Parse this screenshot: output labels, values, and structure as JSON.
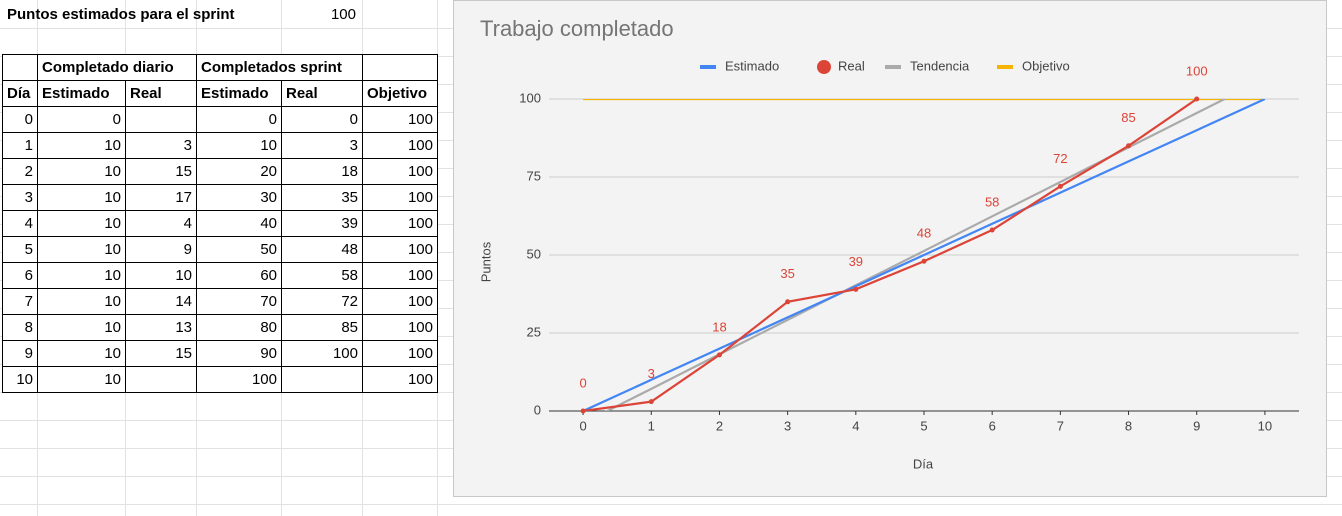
{
  "sheet": {
    "title_label": "Puntos estimados para el sprint",
    "title_value": 100,
    "groups": [
      "Completado diario",
      "Completados sprint"
    ],
    "headers": [
      "Día",
      "Estimado",
      "Real",
      "Estimado",
      "Real",
      "Objetivo"
    ],
    "rows": [
      [
        0,
        0,
        null,
        0,
        0,
        100
      ],
      [
        1,
        10,
        3,
        10,
        3,
        100
      ],
      [
        2,
        10,
        15,
        20,
        18,
        100
      ],
      [
        3,
        10,
        17,
        30,
        35,
        100
      ],
      [
        4,
        10,
        4,
        40,
        39,
        100
      ],
      [
        5,
        10,
        9,
        50,
        48,
        100
      ],
      [
        6,
        10,
        10,
        60,
        58,
        100
      ],
      [
        7,
        10,
        14,
        70,
        72,
        100
      ],
      [
        8,
        10,
        13,
        80,
        85,
        100
      ],
      [
        9,
        10,
        15,
        90,
        100,
        100
      ],
      [
        10,
        10,
        null,
        100,
        null,
        100
      ]
    ]
  },
  "chart_data": {
    "type": "line",
    "title": "Trabajo completado",
    "x_label": "Día",
    "y_label": "Puntos",
    "x": [
      0,
      1,
      2,
      3,
      4,
      5,
      6,
      7,
      8,
      9,
      10
    ],
    "series": [
      {
        "name": "Estimado",
        "color": "#4285f4",
        "values": [
          0,
          10,
          20,
          30,
          40,
          50,
          60,
          70,
          80,
          90,
          100
        ]
      },
      {
        "name": "Real",
        "color": "#db4437",
        "markers": true,
        "data_labels": true,
        "values": [
          0,
          3,
          18,
          35,
          39,
          48,
          58,
          72,
          85,
          100,
          null
        ]
      },
      {
        "name": "Tendencia",
        "color": "#aaaaaa",
        "values": [
          -3.9,
          7.1,
          18.2,
          29.2,
          40.3,
          51.3,
          62.4,
          73.4,
          84.5,
          95.5,
          106.5
        ]
      },
      {
        "name": "Objetivo",
        "color": "#f4b400",
        "values": [
          100,
          100,
          100,
          100,
          100,
          100,
          100,
          100,
          100,
          100,
          100
        ]
      }
    ],
    "xlim": [
      -0.5,
      10.5
    ],
    "xticks": [
      0,
      1,
      2,
      3,
      4,
      5,
      6,
      7,
      8,
      9,
      10
    ],
    "ylim": [
      0,
      100
    ],
    "yticks": [
      0,
      25,
      50,
      75,
      100
    ],
    "grid": true,
    "legend": "top"
  }
}
